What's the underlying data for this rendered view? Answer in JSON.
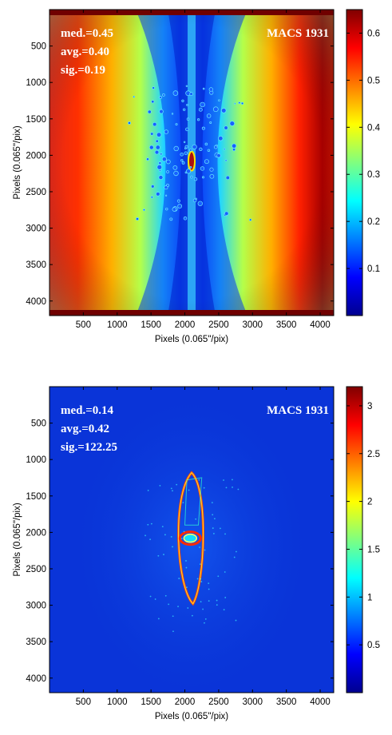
{
  "chart_data": [
    {
      "type": "heatmap",
      "title": "",
      "xlabel": "Pixels (0.065\"/pix)",
      "ylabel": "Pixels (0.065\"/pix)",
      "xlim": [
        0,
        4200
      ],
      "ylim": [
        4200,
        0
      ],
      "xticks": [
        500,
        1000,
        1500,
        2000,
        2500,
        3000,
        3500,
        4000
      ],
      "yticks": [
        500,
        1000,
        1500,
        2000,
        2500,
        3000,
        3500,
        4000
      ],
      "colorbar": {
        "range": [
          0,
          0.65
        ],
        "ticks": [
          0.1,
          0.2,
          0.3,
          0.4,
          0.5,
          0.6
        ],
        "colormap": "jet"
      },
      "annotations": {
        "stats": [
          "med.=0.45",
          "avg.=0.40",
          "sig.=0.19"
        ],
        "cluster": "MACS 1931"
      },
      "grid": false
    },
    {
      "type": "heatmap",
      "title": "",
      "xlabel": "Pixels (0.065\"/pix)",
      "ylabel": "Pixels (0.065\"/pix)",
      "xlim": [
        0,
        4200
      ],
      "ylim": [
        4200,
        0
      ],
      "xticks": [
        500,
        1000,
        1500,
        2000,
        2500,
        3000,
        3500,
        4000
      ],
      "yticks": [
        500,
        1000,
        1500,
        2000,
        2500,
        3000,
        3500,
        4000
      ],
      "colorbar": {
        "range": [
          0,
          3.2
        ],
        "ticks": [
          0.5,
          1,
          1.5,
          2,
          2.5,
          3
        ],
        "colormap": "jet"
      },
      "annotations": {
        "stats": [
          "med.=0.14",
          "avg.=0.42",
          "sig.=122.25"
        ],
        "cluster": "MACS 1931"
      },
      "grid": false
    }
  ]
}
